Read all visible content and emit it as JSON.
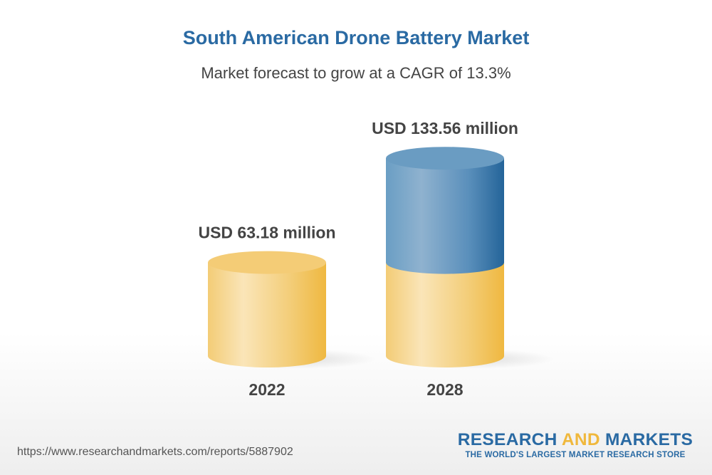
{
  "chart_data": {
    "type": "bar",
    "title": "South American Drone Battery Market",
    "subtitle": "Market forecast to grow at a CAGR of 13.3%",
    "categories": [
      "2022",
      "2028"
    ],
    "values": [
      63.18,
      133.56
    ],
    "data_labels": [
      "USD 63.18 million",
      "USD 133.56 million"
    ],
    "unit": "USD million",
    "style": "3d-cylinder",
    "colors": {
      "base": "#f0c050",
      "growth": "#3a78aa"
    },
    "grid": false
  },
  "footer": {
    "url": "https://www.researchandmarkets.com/reports/5887902",
    "logo_text": "RESEARCH AND MARKETS",
    "logo_tagline": "THE WORLD'S LARGEST MARKET RESEARCH STORE"
  }
}
